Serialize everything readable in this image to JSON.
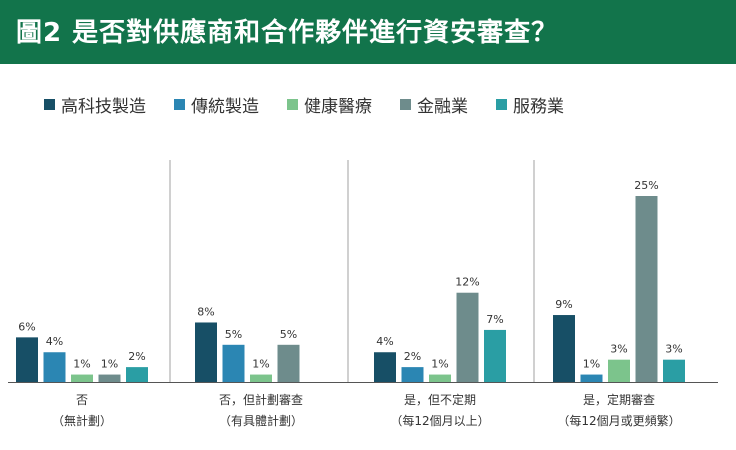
{
  "title": "圖2 是否對供應商和合作夥伴進行資安審查？",
  "chart_data": {
    "type": "bar",
    "categories": [
      {
        "line1": "否",
        "line2": "（無計劃）"
      },
      {
        "line1": "否，但計劃審查",
        "line2": "（有具體計劃）"
      },
      {
        "line1": "是，但不定期",
        "line2": "（每12個月以上）"
      },
      {
        "line1": "是，定期審查",
        "line2": "（每12個月或更頻繁）"
      }
    ],
    "series": [
      {
        "name": "高科技製造",
        "color": "#174f66",
        "values": [
          6,
          8,
          4,
          9
        ],
        "labels": [
          "6%",
          "8%",
          "4%",
          "9%"
        ]
      },
      {
        "name": "傳統製造",
        "color": "#2b86b3",
        "values": [
          4,
          5,
          2,
          1
        ],
        "labels": [
          "4%",
          "5%",
          "2%",
          "1%"
        ]
      },
      {
        "name": "健康醫療",
        "color": "#7cc48c",
        "values": [
          1,
          1,
          1,
          3
        ],
        "labels": [
          "1%",
          "1%",
          "1%",
          "3%"
        ]
      },
      {
        "name": "金融業",
        "color": "#6e8c8c",
        "values": [
          1,
          5,
          12,
          25
        ],
        "labels": [
          "1%",
          "5%",
          "12%",
          "25%"
        ]
      },
      {
        "name": "服務業",
        "color": "#2a9ea4",
        "values": [
          2,
          null,
          7,
          3
        ],
        "labels": [
          "2%",
          "",
          "7%",
          "3%"
        ]
      }
    ]
  }
}
